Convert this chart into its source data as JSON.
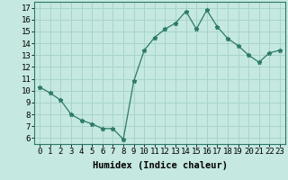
{
  "x": [
    0,
    1,
    2,
    3,
    4,
    5,
    6,
    7,
    8,
    9,
    10,
    11,
    12,
    13,
    14,
    15,
    16,
    17,
    18,
    19,
    20,
    21,
    22,
    23
  ],
  "y": [
    10.3,
    9.8,
    9.2,
    8.0,
    7.5,
    7.2,
    6.8,
    6.8,
    5.9,
    10.8,
    13.4,
    14.5,
    15.2,
    15.7,
    16.7,
    15.2,
    16.8,
    15.4,
    14.4,
    13.8,
    13.0,
    12.4,
    13.2,
    13.4
  ],
  "xlabel": "Humidex (Indice chaleur)",
  "line_color": "#2d7a6a",
  "marker": "*",
  "bg_color": "#c5e8e0",
  "grid_color": "#a8d4cc",
  "ylim": [
    5.5,
    17.5
  ],
  "xlim": [
    -0.5,
    23.5
  ],
  "yticks": [
    6,
    7,
    8,
    9,
    10,
    11,
    12,
    13,
    14,
    15,
    16,
    17
  ],
  "xticks": [
    0,
    1,
    2,
    3,
    4,
    5,
    6,
    7,
    8,
    9,
    10,
    11,
    12,
    13,
    14,
    15,
    16,
    17,
    18,
    19,
    20,
    21,
    22,
    23
  ],
  "xlabel_fontsize": 7.5,
  "tick_fontsize": 6.5
}
